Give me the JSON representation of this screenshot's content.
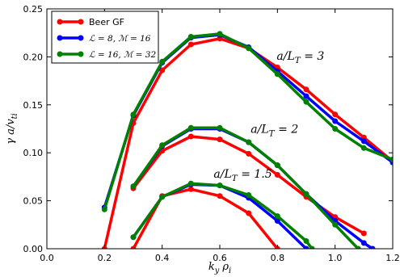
{
  "chart_data": {
    "type": "line",
    "xlabel": "k_y ρ_i",
    "ylabel": "γ a/v_ti",
    "xlim": [
      0.0,
      1.2
    ],
    "ylim": [
      0.0,
      0.25
    ],
    "x_ticks": [
      "0.0",
      "0.2",
      "0.4",
      "0.6",
      "0.8",
      "1.0",
      "1.2"
    ],
    "y_ticks": [
      "0.00",
      "0.05",
      "0.10",
      "0.15",
      "0.20",
      "0.25"
    ],
    "legend_position": "top-left",
    "legend": [
      {
        "label": "Beer GF",
        "color": "#ff0000"
      },
      {
        "label": "ℒ = 8, ℳ = 16",
        "color": "#0000ff"
      },
      {
        "label": "ℒ = 16, ℳ = 32",
        "color": "#008000"
      }
    ],
    "annotations": [
      {
        "text": "a/L_T = 3",
        "x": 0.88,
        "y": 0.197
      },
      {
        "text": "a/L_T = 2",
        "x": 0.79,
        "y": 0.121
      },
      {
        "text": "a/L_T = 1.5",
        "x": 0.68,
        "y": 0.074
      }
    ],
    "groups": [
      {
        "annotation": "a/L_T = 3",
        "series": [
          {
            "name": "Beer GF",
            "color": "#ff0000",
            "x": [
              0.2,
              0.3,
              0.4,
              0.5,
              0.6,
              0.7,
              0.8,
              0.9,
              1.0,
              1.1,
              1.2
            ],
            "y": [
              0.0,
              0.131,
              0.186,
              0.213,
              0.219,
              0.209,
              0.189,
              0.166,
              0.14,
              0.116,
              0.091
            ]
          },
          {
            "name": "ℒ = 8, ℳ = 16",
            "color": "#0000ff",
            "x": [
              0.2,
              0.3,
              0.4,
              0.5,
              0.6,
              0.7,
              0.8,
              0.9,
              1.0,
              1.1,
              1.2
            ],
            "y": [
              0.043,
              0.139,
              0.194,
              0.22,
              0.223,
              0.21,
              0.185,
              0.159,
              0.133,
              0.112,
              0.09
            ]
          },
          {
            "name": "ℒ = 16, ℳ = 32",
            "color": "#008000",
            "x": [
              0.2,
              0.3,
              0.4,
              0.5,
              0.6,
              0.7,
              0.8,
              0.9,
              1.0,
              1.1,
              1.2
            ],
            "y": [
              0.041,
              0.14,
              0.195,
              0.221,
              0.224,
              0.209,
              0.182,
              0.153,
              0.125,
              0.105,
              0.093
            ]
          }
        ]
      },
      {
        "annotation": "a/L_T = 2",
        "series": [
          {
            "name": "Beer GF",
            "color": "#ff0000",
            "x": [
              0.3,
              0.4,
              0.5,
              0.6,
              0.7,
              0.8,
              0.9,
              1.0,
              1.1
            ],
            "y": [
              0.063,
              0.102,
              0.117,
              0.114,
              0.099,
              0.077,
              0.054,
              0.033,
              0.016
            ]
          },
          {
            "name": "ℒ = 8, ℳ = 16",
            "color": "#0000ff",
            "x": [
              0.3,
              0.4,
              0.5,
              0.6,
              0.7,
              0.8,
              0.9,
              1.0,
              1.1,
              1.13
            ],
            "y": [
              0.065,
              0.107,
              0.125,
              0.125,
              0.111,
              0.087,
              0.057,
              0.029,
              0.006,
              0.0
            ]
          },
          {
            "name": "ℒ = 16, ℳ = 32",
            "color": "#008000",
            "x": [
              0.3,
              0.4,
              0.5,
              0.6,
              0.7,
              0.8,
              0.9,
              1.0,
              1.08
            ],
            "y": [
              0.065,
              0.108,
              0.126,
              0.126,
              0.111,
              0.087,
              0.057,
              0.025,
              0.0
            ]
          }
        ]
      },
      {
        "annotation": "a/L_T = 1.5",
        "series": [
          {
            "name": "Beer GF",
            "color": "#ff0000",
            "x": [
              0.3,
              0.4,
              0.5,
              0.6,
              0.7,
              0.8
            ],
            "y": [
              0.0,
              0.055,
              0.062,
              0.055,
              0.037,
              0.0
            ]
          },
          {
            "name": "ℒ = 8, ℳ = 16",
            "color": "#0000ff",
            "x": [
              0.3,
              0.4,
              0.5,
              0.6,
              0.7,
              0.8,
              0.9
            ],
            "y": [
              0.012,
              0.054,
              0.067,
              0.066,
              0.053,
              0.029,
              0.0
            ]
          },
          {
            "name": "ℒ = 16, ℳ = 32",
            "color": "#008000",
            "x": [
              0.3,
              0.4,
              0.5,
              0.6,
              0.7,
              0.8,
              0.9,
              0.92
            ],
            "y": [
              0.012,
              0.054,
              0.068,
              0.066,
              0.056,
              0.034,
              0.008,
              0.0
            ]
          }
        ]
      }
    ]
  }
}
